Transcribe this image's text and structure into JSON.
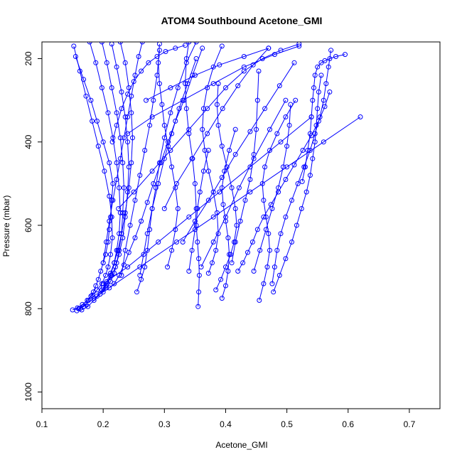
{
  "chart_data": {
    "type": "line",
    "title": "ATOM4 Southbound Acetone_GMI",
    "xlabel": "Acetone_GMI",
    "ylabel": "Pressure (mbar)",
    "xlim": [
      0.1,
      0.75
    ],
    "ylim": [
      1040,
      160
    ],
    "y_reversed": true,
    "grid": false,
    "legend": "none",
    "x_ticks": [
      0.1,
      0.2,
      0.3,
      0.4,
      0.5,
      0.6,
      0.7
    ],
    "x_tick_labels": [
      "0.1",
      "0.2",
      "0.3",
      "0.4",
      "0.5",
      "0.6",
      "0.7"
    ],
    "y_ticks": [
      200,
      400,
      600,
      800,
      1000
    ],
    "y_tick_labels": [
      "200",
      "400",
      "600",
      "800",
      "1000"
    ],
    "series_color": "#0000ff",
    "marker": "open-circle",
    "series": [
      {
        "x": [
          0.157,
          0.162,
          0.168,
          0.172,
          0.176,
          0.18,
          0.184,
          0.188,
          0.192,
          0.196,
          0.2,
          0.204,
          0.208,
          0.21,
          0.212,
          0.214,
          0.216,
          0.21,
          0.2,
          0.19,
          0.18,
          0.168,
          0.155
        ],
        "y": [
          805,
          800,
          795,
          790,
          780,
          770,
          760,
          745,
          730,
          710,
          690,
          670,
          640,
          610,
          580,
          540,
          500,
          450,
          400,
          350,
          300,
          250,
          195
        ]
      },
      {
        "x": [
          0.15,
          0.158,
          0.166,
          0.174,
          0.182,
          0.19,
          0.198,
          0.204,
          0.208,
          0.212,
          0.215,
          0.214,
          0.21,
          0.202,
          0.192,
          0.182,
          0.172,
          0.162,
          0.152
        ],
        "y": [
          803,
          798,
          790,
          780,
          768,
          755,
          740,
          720,
          700,
          670,
          630,
          580,
          530,
          470,
          410,
          350,
          290,
          230,
          170
        ]
      },
      {
        "x": [
          0.165,
          0.175,
          0.185,
          0.195,
          0.205,
          0.212,
          0.218,
          0.222,
          0.226,
          0.228,
          0.226,
          0.222,
          0.216,
          0.208,
          0.198,
          0.188,
          0.178
        ],
        "y": [
          803,
          795,
          780,
          765,
          745,
          720,
          690,
          660,
          620,
          570,
          510,
          450,
          390,
          330,
          270,
          210,
          160
        ]
      },
      {
        "x": [
          0.185,
          0.195,
          0.205,
          0.212,
          0.218,
          0.222,
          0.226,
          0.23,
          0.232,
          0.234,
          0.232,
          0.228,
          0.222,
          0.214,
          0.206,
          0.198
        ],
        "y": [
          775,
          765,
          750,
          735,
          715,
          690,
          660,
          620,
          570,
          510,
          450,
          390,
          330,
          270,
          210,
          160
        ]
      },
      {
        "x": [
          0.19,
          0.198,
          0.206,
          0.214,
          0.22,
          0.226,
          0.232,
          0.236,
          0.24,
          0.242,
          0.24,
          0.236,
          0.23,
          0.222,
          0.214
        ],
        "y": [
          770,
          755,
          740,
          720,
          700,
          670,
          630,
          580,
          520,
          460,
          400,
          340,
          280,
          220,
          165
        ]
      },
      {
        "x": [
          0.2,
          0.206,
          0.212,
          0.218,
          0.224,
          0.23,
          0.236,
          0.242,
          0.246,
          0.248,
          0.246,
          0.242,
          0.236,
          0.228
        ],
        "y": [
          750,
          735,
          715,
          690,
          660,
          620,
          570,
          510,
          450,
          390,
          330,
          270,
          210,
          160
        ]
      },
      {
        "x": [
          0.21,
          0.218,
          0.226,
          0.234,
          0.242,
          0.252,
          0.262,
          0.272,
          0.282,
          0.294,
          0.306,
          0.318,
          0.332,
          0.346,
          0.362
        ],
        "y": [
          750,
          740,
          720,
          695,
          665,
          630,
          590,
          545,
          500,
          450,
          400,
          350,
          300,
          240,
          175
        ]
      },
      {
        "x": [
          0.255,
          0.262,
          0.268,
          0.272,
          0.276,
          0.28,
          0.286,
          0.292,
          0.3,
          0.31,
          0.322,
          0.336,
          0.352
        ],
        "y": [
          760,
          730,
          700,
          660,
          610,
          560,
          510,
          450,
          390,
          330,
          270,
          210,
          160
        ]
      },
      {
        "x": [
          0.305,
          0.312,
          0.318,
          0.322,
          0.318,
          0.312,
          0.306,
          0.3,
          0.296,
          0.292,
          0.29,
          0.292
        ],
        "y": [
          700,
          660,
          610,
          560,
          510,
          460,
          410,
          360,
          310,
          260,
          210,
          165
        ]
      },
      {
        "x": [
          0.34,
          0.345,
          0.35,
          0.352,
          0.35,
          0.346,
          0.34,
          0.336,
          0.334,
          0.336,
          0.34
        ],
        "y": [
          710,
          660,
          610,
          560,
          500,
          440,
          380,
          320,
          260,
          200,
          160
        ]
      },
      {
        "x": [
          0.355,
          0.356,
          0.357,
          0.356,
          0.354,
          0.352,
          0.354,
          0.358,
          0.364,
          0.372
        ],
        "y": [
          795,
          760,
          720,
          680,
          640,
          600,
          560,
          520,
          470,
          420
        ]
      },
      {
        "x": [
          0.372,
          0.378,
          0.384,
          0.388,
          0.386,
          0.38,
          0.372,
          0.366,
          0.362,
          0.364,
          0.37,
          0.38,
          0.394
        ],
        "y": [
          715,
          690,
          660,
          620,
          570,
          520,
          470,
          420,
          370,
          320,
          270,
          220,
          170
        ]
      },
      {
        "x": [
          0.384,
          0.392,
          0.4,
          0.408,
          0.414,
          0.418,
          0.416,
          0.41,
          0.402,
          0.394,
          0.388,
          0.386,
          0.388
        ],
        "y": [
          755,
          730,
          700,
          670,
          640,
          600,
          560,
          510,
          460,
          410,
          360,
          310,
          260
        ]
      },
      {
        "x": [
          0.394,
          0.4,
          0.404,
          0.406,
          0.404,
          0.4,
          0.396,
          0.394,
          0.398,
          0.406,
          0.416
        ],
        "y": [
          775,
          745,
          710,
          670,
          630,
          590,
          550,
          510,
          470,
          420,
          370
        ]
      },
      {
        "x": [
          0.42,
          0.428,
          0.436,
          0.444,
          0.452,
          0.462,
          0.474,
          0.486,
          0.498,
          0.512,
          0.526,
          0.54,
          0.552,
          0.562,
          0.57
        ],
        "y": [
          710,
          690,
          665,
          640,
          610,
          580,
          550,
          520,
          490,
          455,
          420,
          385,
          350,
          315,
          280
        ]
      },
      {
        "x": [
          0.455,
          0.462,
          0.468,
          0.472,
          0.47,
          0.466,
          0.462,
          0.46,
          0.464,
          0.472,
          0.484,
          0.498,
          0.514
        ],
        "y": [
          780,
          740,
          700,
          660,
          620,
          580,
          540,
          500,
          460,
          420,
          380,
          340,
          300
        ]
      },
      {
        "x": [
          0.476,
          0.48,
          0.484,
          0.49,
          0.498,
          0.508,
          0.518,
          0.528,
          0.538,
          0.546,
          0.554,
          0.56,
          0.564,
          0.568,
          0.572
        ],
        "y": [
          740,
          700,
          660,
          620,
          580,
          540,
          500,
          460,
          420,
          380,
          340,
          300,
          260,
          220,
          180
        ]
      },
      {
        "x": [
          0.478,
          0.488,
          0.498,
          0.508,
          0.516,
          0.524,
          0.532,
          0.538,
          0.542,
          0.546,
          0.548,
          0.55,
          0.552,
          0.556
        ],
        "y": [
          760,
          720,
          680,
          640,
          600,
          560,
          520,
          480,
          440,
          400,
          360,
          320,
          280,
          240
        ]
      },
      {
        "x": [
          0.525,
          0.53,
          0.534,
          0.538,
          0.54,
          0.542,
          0.544,
          0.546,
          0.55,
          0.556,
          0.562,
          0.57,
          0.58,
          0.595
        ],
        "y": [
          495,
          460,
          420,
          380,
          340,
          300,
          270,
          240,
          220,
          210,
          205,
          200,
          195,
          190
        ]
      },
      {
        "x": [
          0.16,
          0.2,
          0.26,
          0.32,
          0.38,
          0.44,
          0.5,
          0.56,
          0.62
        ],
        "y": [
          800,
          760,
          700,
          640,
          580,
          520,
          460,
          400,
          340
        ]
      },
      {
        "x": [
          0.2,
          0.24,
          0.29,
          0.34,
          0.39,
          0.44,
          0.49,
          0.54
        ],
        "y": [
          740,
          700,
          640,
          580,
          520,
          460,
          400,
          340
        ]
      },
      {
        "x": [
          0.225,
          0.25,
          0.28,
          0.31,
          0.34,
          0.37,
          0.4,
          0.43,
          0.46,
          0.49,
          0.52
        ],
        "y": [
          560,
          520,
          470,
          420,
          370,
          320,
          270,
          230,
          200,
          180,
          165
        ]
      },
      {
        "x": [
          0.24,
          0.28,
          0.33,
          0.38,
          0.43,
          0.48,
          0.52
        ],
        "y": [
          380,
          340,
          300,
          260,
          220,
          190,
          170
        ]
      },
      {
        "x": [
          0.27,
          0.31,
          0.35,
          0.39,
          0.43,
          0.47
        ],
        "y": [
          300,
          270,
          240,
          215,
          195,
          175
        ]
      },
      {
        "x": [
          0.215,
          0.222,
          0.23,
          0.24,
          0.25,
          0.262,
          0.274,
          0.288,
          0.302,
          0.318,
          0.334
        ],
        "y": [
          400,
          360,
          320,
          285,
          255,
          230,
          210,
          195,
          183,
          175,
          168
        ]
      },
      {
        "x": [
          0.3,
          0.32,
          0.345,
          0.37,
          0.395,
          0.42,
          0.445,
          0.47
        ],
        "y": [
          560,
          500,
          440,
          380,
          320,
          265,
          215,
          175
        ]
      },
      {
        "x": [
          0.33,
          0.35,
          0.372,
          0.394,
          0.416,
          0.44,
          0.464,
          0.488,
          0.512
        ],
        "y": [
          640,
          590,
          540,
          485,
          430,
          375,
          320,
          265,
          210
        ]
      },
      {
        "x": [
          0.36,
          0.38,
          0.4,
          0.422,
          0.446,
          0.472,
          0.498
        ],
        "y": [
          700,
          640,
          580,
          510,
          440,
          370,
          300
        ]
      },
      {
        "x": [
          0.2,
          0.205,
          0.21,
          0.216,
          0.222,
          0.228,
          0.234,
          0.24,
          0.246,
          0.252,
          0.258,
          0.264
        ],
        "y": [
          690,
          640,
          590,
          540,
          490,
          440,
          390,
          340,
          290,
          240,
          195,
          160
        ]
      },
      {
        "x": [
          0.23,
          0.236,
          0.244,
          0.252,
          0.26,
          0.268,
          0.276,
          0.282,
          0.288,
          0.292
        ],
        "y": [
          720,
          660,
          600,
          540,
          480,
          420,
          360,
          300,
          240,
          180
        ]
      },
      {
        "x": [
          0.26,
          0.266,
          0.272,
          0.28,
          0.29,
          0.3,
          0.312,
          0.324,
          0.338,
          0.352
        ],
        "y": [
          720,
          670,
          620,
          560,
          500,
          440,
          380,
          320,
          260,
          200
        ]
      },
      {
        "x": [
          0.41,
          0.416,
          0.424,
          0.432,
          0.44,
          0.446,
          0.45,
          0.452,
          0.454
        ],
        "y": [
          690,
          640,
          590,
          540,
          490,
          430,
          370,
          300,
          230
        ]
      },
      {
        "x": [
          0.446,
          0.456,
          0.466,
          0.476,
          0.486,
          0.494,
          0.5,
          0.504,
          0.506
        ],
        "y": [
          710,
          660,
          610,
          560,
          510,
          460,
          410,
          360,
          310
        ]
      }
    ]
  }
}
